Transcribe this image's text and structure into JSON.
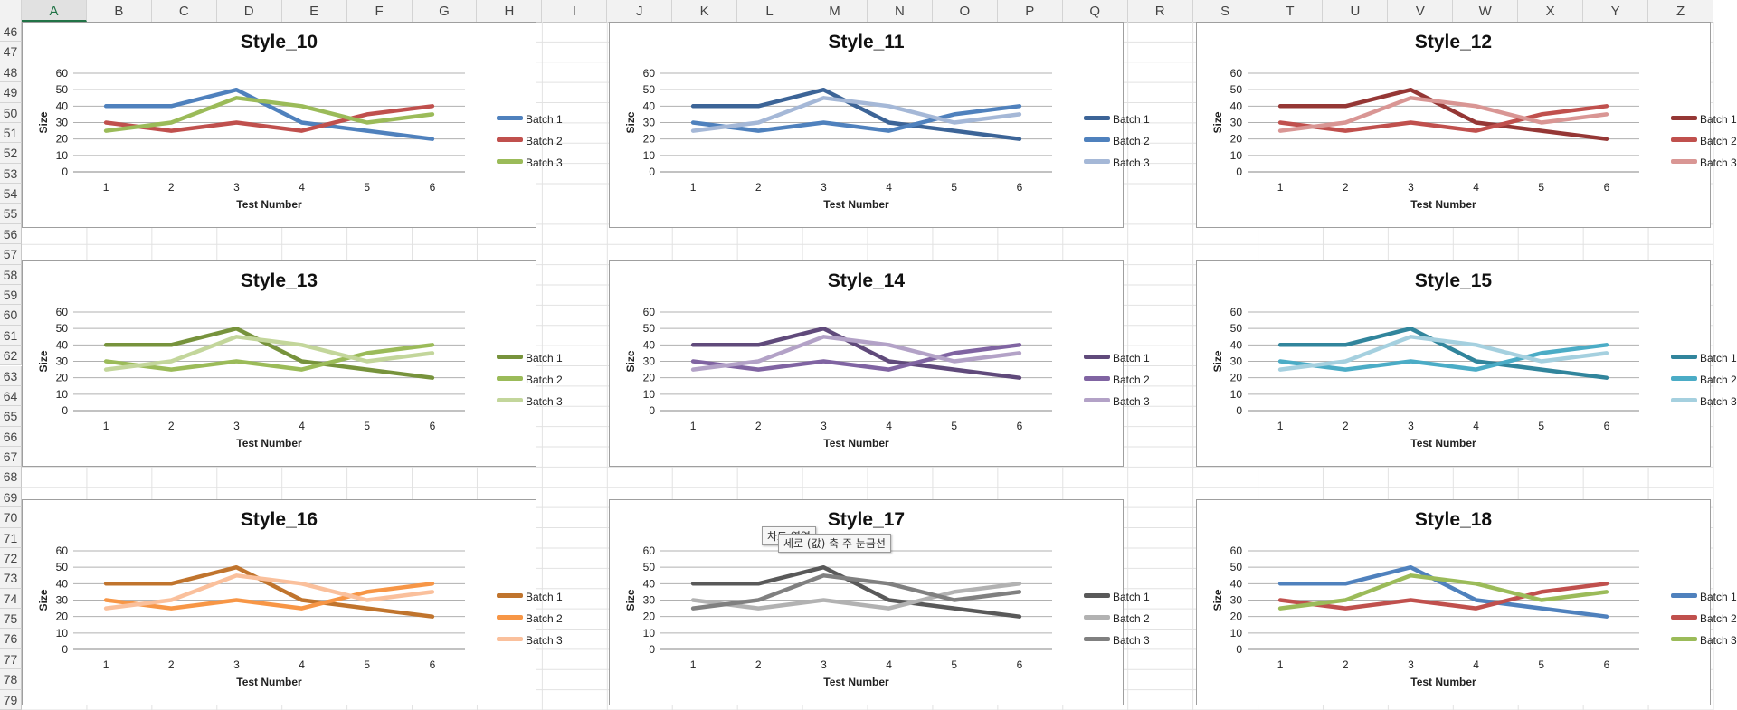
{
  "spreadsheet": {
    "columns": [
      "A",
      "B",
      "C",
      "D",
      "E",
      "F",
      "G",
      "H",
      "I",
      "J",
      "K",
      "L",
      "M",
      "N",
      "O",
      "P",
      "Q",
      "R",
      "S",
      "T",
      "U",
      "V",
      "W",
      "X",
      "Y",
      "Z"
    ],
    "selected_column": "A",
    "rows": [
      "46",
      "47",
      "48",
      "49",
      "50",
      "51",
      "52",
      "53",
      "54",
      "55",
      "56",
      "57",
      "58",
      "59",
      "60",
      "61",
      "62",
      "63",
      "64",
      "65",
      "66",
      "67",
      "68",
      "69",
      "70",
      "71",
      "72",
      "73",
      "74",
      "75",
      "76",
      "77",
      "78",
      "79"
    ]
  },
  "tooltips": {
    "chart_area": "차트 영역",
    "major_gridlines": "세로 (값) 축 주 눈금선"
  },
  "chart_data": [
    {
      "type": "line",
      "title": "Style_10",
      "xlabel": "Test Number",
      "ylabel": "Size",
      "categories": [
        1,
        2,
        3,
        4,
        5,
        6
      ],
      "ylim": [
        0,
        60
      ],
      "yticks": [
        0,
        10,
        20,
        30,
        40,
        50,
        60
      ],
      "grid": true,
      "legend": "right",
      "series": [
        {
          "name": "Batch 1",
          "values": [
            40,
            40,
            50,
            30,
            25,
            20
          ],
          "color": "#4f81bd"
        },
        {
          "name": "Batch 2",
          "values": [
            30,
            25,
            30,
            25,
            35,
            40
          ],
          "color": "#c0504d"
        },
        {
          "name": "Batch 3",
          "values": [
            25,
            30,
            45,
            40,
            30,
            35
          ],
          "color": "#9bbb59"
        }
      ]
    },
    {
      "type": "line",
      "title": "Style_11",
      "xlabel": "Test Number",
      "ylabel": "Size",
      "categories": [
        1,
        2,
        3,
        4,
        5,
        6
      ],
      "ylim": [
        0,
        60
      ],
      "yticks": [
        0,
        10,
        20,
        30,
        40,
        50,
        60
      ],
      "grid": true,
      "legend": "right",
      "series": [
        {
          "name": "Batch 1",
          "values": [
            40,
            40,
            50,
            30,
            25,
            20
          ],
          "color": "#3c6497"
        },
        {
          "name": "Batch 2",
          "values": [
            30,
            25,
            30,
            25,
            35,
            40
          ],
          "color": "#4f81bd"
        },
        {
          "name": "Batch 3",
          "values": [
            25,
            30,
            45,
            40,
            30,
            35
          ],
          "color": "#a5b8d7"
        }
      ]
    },
    {
      "type": "line",
      "title": "Style_12",
      "xlabel": "Test Number",
      "ylabel": "Size",
      "categories": [
        1,
        2,
        3,
        4,
        5,
        6
      ],
      "ylim": [
        0,
        60
      ],
      "yticks": [
        0,
        10,
        20,
        30,
        40,
        50,
        60
      ],
      "grid": true,
      "legend": "right",
      "series": [
        {
          "name": "Batch 1",
          "values": [
            40,
            40,
            50,
            30,
            25,
            20
          ],
          "color": "#953735"
        },
        {
          "name": "Batch 2",
          "values": [
            30,
            25,
            30,
            25,
            35,
            40
          ],
          "color": "#c0504d"
        },
        {
          "name": "Batch 3",
          "values": [
            25,
            30,
            45,
            40,
            30,
            35
          ],
          "color": "#d99694"
        }
      ]
    },
    {
      "type": "line",
      "title": "Style_13",
      "xlabel": "Test Number",
      "ylabel": "Size",
      "categories": [
        1,
        2,
        3,
        4,
        5,
        6
      ],
      "ylim": [
        0,
        60
      ],
      "yticks": [
        0,
        10,
        20,
        30,
        40,
        50,
        60
      ],
      "grid": true,
      "legend": "right",
      "series": [
        {
          "name": "Batch 1",
          "values": [
            40,
            40,
            50,
            30,
            25,
            20
          ],
          "color": "#77933c"
        },
        {
          "name": "Batch 2",
          "values": [
            30,
            25,
            30,
            25,
            35,
            40
          ],
          "color": "#9bbb59"
        },
        {
          "name": "Batch 3",
          "values": [
            25,
            30,
            45,
            40,
            30,
            35
          ],
          "color": "#c3d69b"
        }
      ]
    },
    {
      "type": "line",
      "title": "Style_14",
      "xlabel": "Test Number",
      "ylabel": "Size",
      "categories": [
        1,
        2,
        3,
        4,
        5,
        6
      ],
      "ylim": [
        0,
        60
      ],
      "yticks": [
        0,
        10,
        20,
        30,
        40,
        50,
        60
      ],
      "grid": true,
      "legend": "right",
      "series": [
        {
          "name": "Batch 1",
          "values": [
            40,
            40,
            50,
            30,
            25,
            20
          ],
          "color": "#604a7b"
        },
        {
          "name": "Batch 2",
          "values": [
            30,
            25,
            30,
            25,
            35,
            40
          ],
          "color": "#8064a2"
        },
        {
          "name": "Batch 3",
          "values": [
            25,
            30,
            45,
            40,
            30,
            35
          ],
          "color": "#b3a2c7"
        }
      ]
    },
    {
      "type": "line",
      "title": "Style_15",
      "xlabel": "Test Number",
      "ylabel": "Size",
      "categories": [
        1,
        2,
        3,
        4,
        5,
        6
      ],
      "ylim": [
        0,
        60
      ],
      "yticks": [
        0,
        10,
        20,
        30,
        40,
        50,
        60
      ],
      "grid": true,
      "legend": "right",
      "series": [
        {
          "name": "Batch 1",
          "values": [
            40,
            40,
            50,
            30,
            25,
            20
          ],
          "color": "#31859c"
        },
        {
          "name": "Batch 2",
          "values": [
            30,
            25,
            30,
            25,
            35,
            40
          ],
          "color": "#4bacc6"
        },
        {
          "name": "Batch 3",
          "values": [
            25,
            30,
            45,
            40,
            30,
            35
          ],
          "color": "#a5d0df"
        }
      ]
    },
    {
      "type": "line",
      "title": "Style_16",
      "xlabel": "Test Number",
      "ylabel": "Size",
      "categories": [
        1,
        2,
        3,
        4,
        5,
        6
      ],
      "ylim": [
        0,
        60
      ],
      "yticks": [
        0,
        10,
        20,
        30,
        40,
        50,
        60
      ],
      "grid": true,
      "legend": "right",
      "series": [
        {
          "name": "Batch 1",
          "values": [
            40,
            40,
            50,
            30,
            25,
            20
          ],
          "color": "#c0742d"
        },
        {
          "name": "Batch 2",
          "values": [
            30,
            25,
            30,
            25,
            35,
            40
          ],
          "color": "#f79646"
        },
        {
          "name": "Batch 3",
          "values": [
            25,
            30,
            45,
            40,
            30,
            35
          ],
          "color": "#fac09c"
        }
      ]
    },
    {
      "type": "line",
      "title": "Style_17",
      "xlabel": "Test Number",
      "ylabel": "Size",
      "categories": [
        1,
        2,
        3,
        4,
        5,
        6
      ],
      "ylim": [
        0,
        60
      ],
      "yticks": [
        0,
        10,
        20,
        30,
        40,
        50,
        60
      ],
      "grid": true,
      "legend": "right",
      "series": [
        {
          "name": "Batch 1",
          "values": [
            40,
            40,
            50,
            30,
            25,
            20
          ],
          "color": "#595959"
        },
        {
          "name": "Batch 2",
          "values": [
            30,
            25,
            30,
            25,
            35,
            40
          ],
          "color": "#b2b2b2"
        },
        {
          "name": "Batch 3",
          "values": [
            25,
            30,
            45,
            40,
            30,
            35
          ],
          "color": "#808080"
        }
      ]
    },
    {
      "type": "line",
      "title": "Style_18",
      "xlabel": "Test Number",
      "ylabel": "Size",
      "categories": [
        1,
        2,
        3,
        4,
        5,
        6
      ],
      "ylim": [
        0,
        60
      ],
      "yticks": [
        0,
        10,
        20,
        30,
        40,
        50,
        60
      ],
      "grid": true,
      "legend": "right",
      "series": [
        {
          "name": "Batch 1",
          "values": [
            40,
            40,
            50,
            30,
            25,
            20
          ],
          "color": "#4f81bd"
        },
        {
          "name": "Batch 2",
          "values": [
            30,
            25,
            30,
            25,
            35,
            40
          ],
          "color": "#c0504d"
        },
        {
          "name": "Batch 3",
          "values": [
            25,
            30,
            45,
            40,
            30,
            35
          ],
          "color": "#9bbb59"
        }
      ]
    }
  ]
}
